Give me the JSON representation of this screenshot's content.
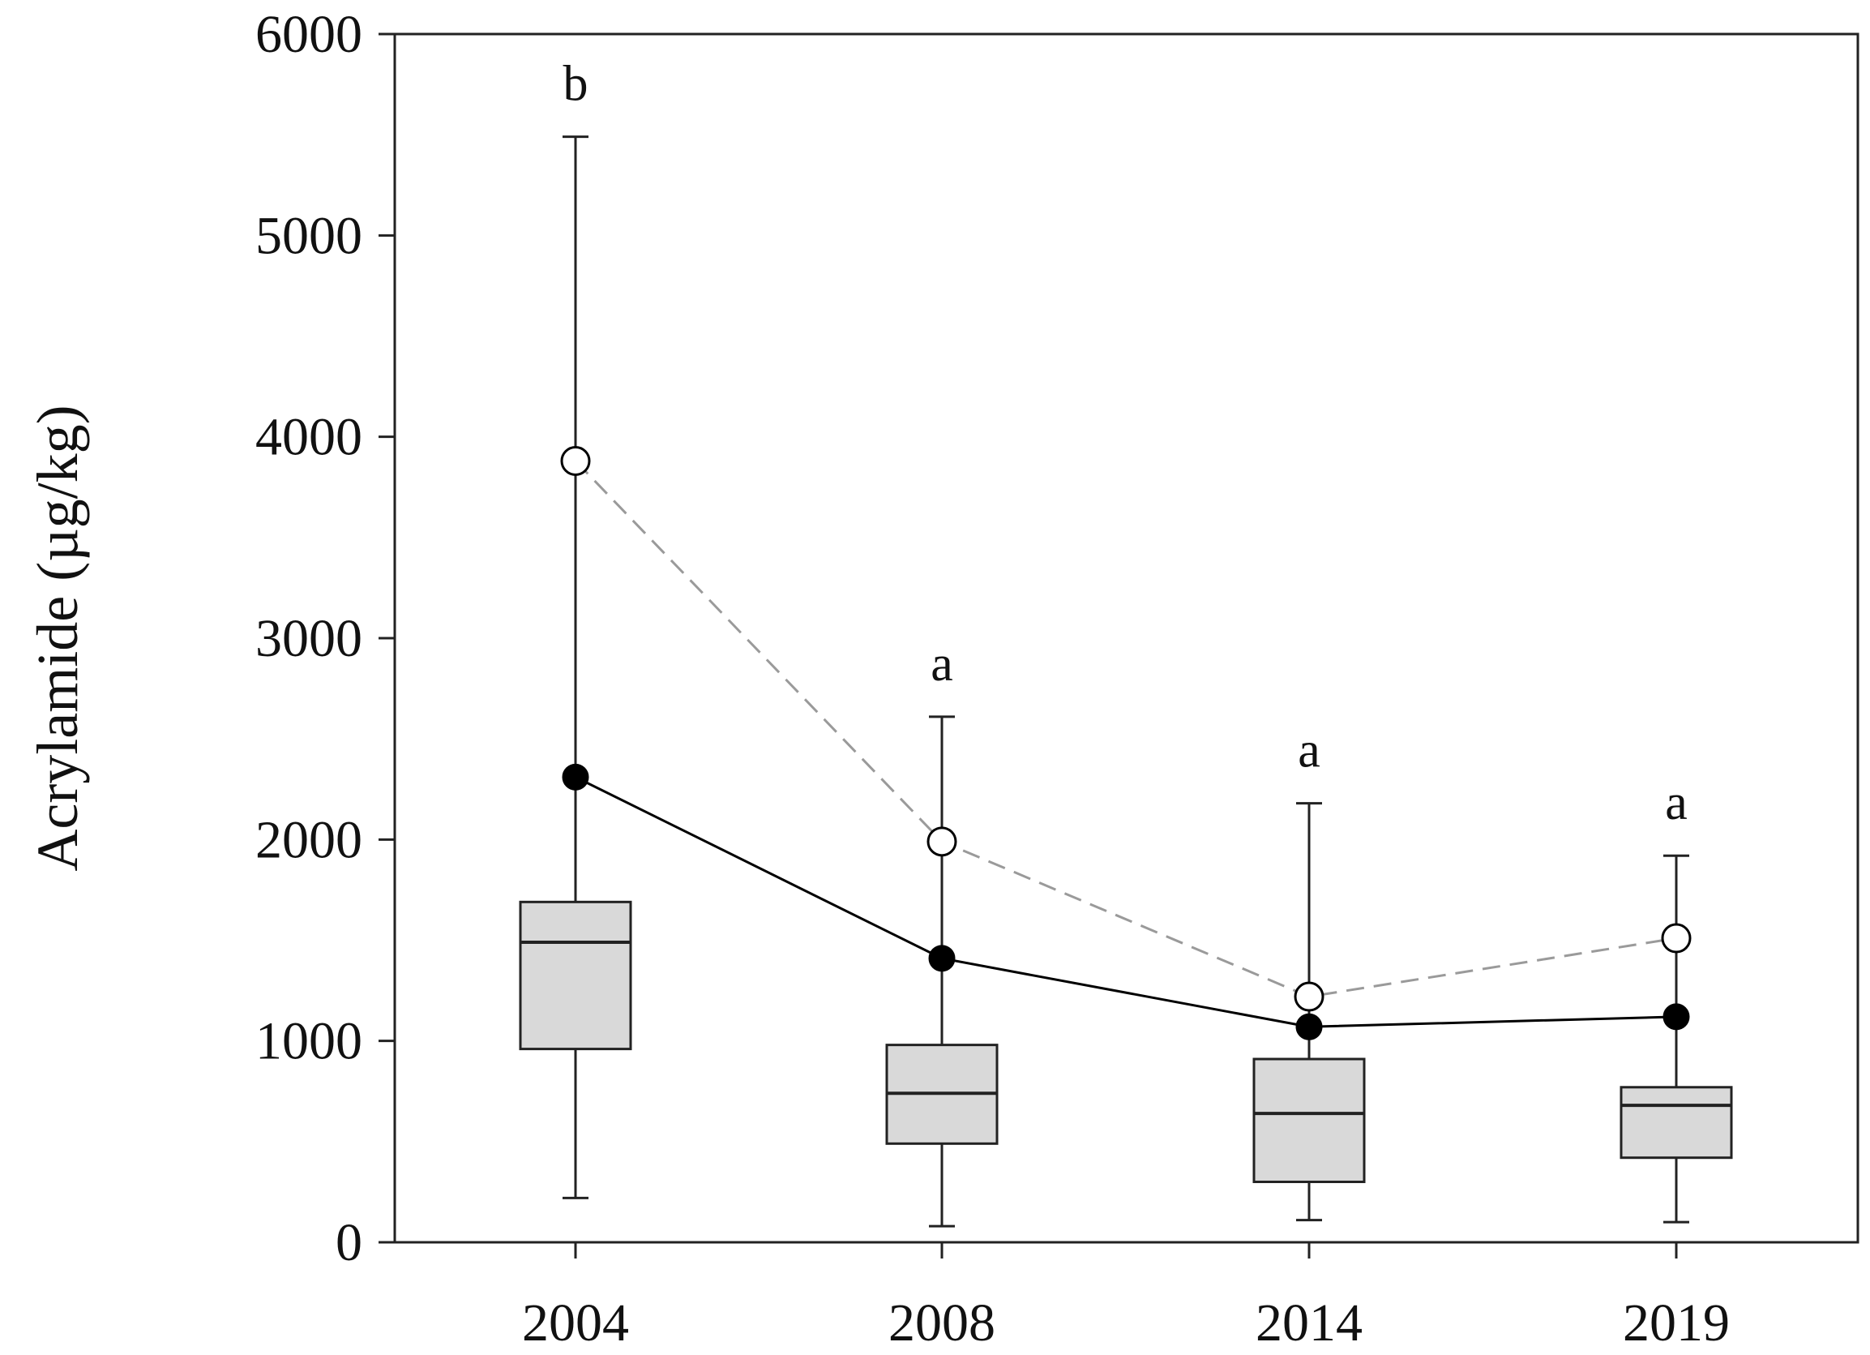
{
  "chart_data": {
    "type": "box",
    "title": "",
    "xlabel": "",
    "ylabel": "Acrylamide (µg/kg)",
    "ylim": [
      0,
      6000
    ],
    "yticks": [
      0,
      1000,
      2000,
      3000,
      4000,
      5000,
      6000
    ],
    "categories": [
      "2004",
      "2008",
      "2014",
      "2019"
    ],
    "boxes": [
      {
        "category": "2004",
        "whisker_low": 220,
        "q1": 960,
        "median": 1490,
        "q3": 1690,
        "whisker_high": 5490
      },
      {
        "category": "2008",
        "whisker_low": 80,
        "q1": 490,
        "median": 740,
        "q3": 980,
        "whisker_high": 2610
      },
      {
        "category": "2014",
        "whisker_low": 110,
        "q1": 300,
        "median": 640,
        "q3": 910,
        "whisker_high": 2180
      },
      {
        "category": "2019",
        "whisker_low": 100,
        "q1": 420,
        "median": 680,
        "q3": 770,
        "whisker_high": 1920
      }
    ],
    "series": [
      {
        "marker": "filled-circle",
        "line": "solid",
        "color": "#000000",
        "values": [
          2310,
          1410,
          1070,
          1120
        ]
      },
      {
        "marker": "open-circle",
        "line": "dashed",
        "color": "#9a9a9a",
        "values": [
          3880,
          1990,
          1220,
          1510
        ]
      }
    ],
    "annotations": [
      {
        "category": "2004",
        "text": "b"
      },
      {
        "category": "2008",
        "text": "a"
      },
      {
        "category": "2014",
        "text": "a"
      },
      {
        "category": "2019",
        "text": "a"
      }
    ],
    "box_fill": "#d9d9d9",
    "grid": false
  }
}
